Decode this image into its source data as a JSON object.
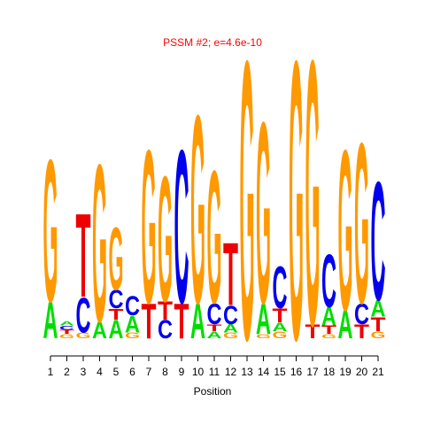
{
  "chart_data": {
    "type": "sequence-logo",
    "title": "PSSM #2; e=4.6e-10",
    "xlabel": "Position",
    "title_color": "#ff0000",
    "colors": {
      "A": "#00dd00",
      "C": "#0000ee",
      "G": "#ff9900",
      "T": "#ee0000"
    },
    "categories": [
      1,
      2,
      3,
      4,
      5,
      6,
      7,
      8,
      9,
      10,
      11,
      12,
      13,
      14,
      15,
      16,
      17,
      18,
      19,
      20,
      21
    ],
    "columns": [
      [
        {
          "letter": "A",
          "height": 0.26
        },
        {
          "letter": "G",
          "height": 1.02
        }
      ],
      [
        {
          "letter": "G",
          "height": 0.03
        },
        {
          "letter": "T",
          "height": 0.03
        },
        {
          "letter": "C",
          "height": 0.03
        },
        {
          "letter": "A",
          "height": 0.03
        }
      ],
      [
        {
          "letter": "G",
          "height": 0.04
        },
        {
          "letter": "C",
          "height": 0.25
        },
        {
          "letter": "T",
          "height": 0.6
        }
      ],
      [
        {
          "letter": "A",
          "height": 0.12
        },
        {
          "letter": "G",
          "height": 1.13
        }
      ],
      [
        {
          "letter": "A",
          "height": 0.13
        },
        {
          "letter": "T",
          "height": 0.08
        },
        {
          "letter": "C",
          "height": 0.13
        },
        {
          "letter": "G",
          "height": 0.45
        }
      ],
      [
        {
          "letter": "G",
          "height": 0.04
        },
        {
          "letter": "A",
          "height": 0.12
        },
        {
          "letter": "C",
          "height": 0.14
        }
      ],
      [
        {
          "letter": "T",
          "height": 0.25
        },
        {
          "letter": "G",
          "height": 1.1
        }
      ],
      [
        {
          "letter": "C",
          "height": 0.13
        },
        {
          "letter": "T",
          "height": 0.13
        },
        {
          "letter": "G",
          "height": 0.9
        }
      ],
      [
        {
          "letter": "T",
          "height": 0.25
        },
        {
          "letter": "C",
          "height": 1.1
        }
      ],
      [
        {
          "letter": "A",
          "height": 0.25
        },
        {
          "letter": "G",
          "height": 1.35
        }
      ],
      [
        {
          "letter": "A",
          "height": 0.05
        },
        {
          "letter": "T",
          "height": 0.05
        },
        {
          "letter": "C",
          "height": 0.15
        },
        {
          "letter": "G",
          "height": 0.95
        }
      ],
      [
        {
          "letter": "G",
          "height": 0.04
        },
        {
          "letter": "A",
          "height": 0.06
        },
        {
          "letter": "C",
          "height": 0.13
        },
        {
          "letter": "T",
          "height": 0.45
        }
      ],
      [
        {
          "letter": "G",
          "height": 2.0
        }
      ],
      [
        {
          "letter": "G",
          "height": 0.03
        },
        {
          "letter": "A",
          "height": 0.22
        },
        {
          "letter": "G",
          "height": 1.3
        }
      ],
      [
        {
          "letter": "G",
          "height": 0.05
        },
        {
          "letter": "A",
          "height": 0.06
        },
        {
          "letter": "T",
          "height": 0.1
        },
        {
          "letter": "C",
          "height": 0.3
        }
      ],
      [
        {
          "letter": "G",
          "height": 2.0
        }
      ],
      [
        {
          "letter": "T",
          "height": 0.1
        },
        {
          "letter": "G",
          "height": 1.9
        }
      ],
      [
        {
          "letter": "G",
          "height": 0.03
        },
        {
          "letter": "T",
          "height": 0.06
        },
        {
          "letter": "A",
          "height": 0.13
        },
        {
          "letter": "C",
          "height": 0.38
        }
      ],
      [
        {
          "letter": "A",
          "height": 0.2
        },
        {
          "letter": "G",
          "height": 1.15
        }
      ],
      [
        {
          "letter": "T",
          "height": 0.1
        },
        {
          "letter": "C",
          "height": 0.15
        },
        {
          "letter": "G",
          "height": 1.15
        }
      ],
      [
        {
          "letter": "G",
          "height": 0.05
        },
        {
          "letter": "T",
          "height": 0.1
        },
        {
          "letter": "A",
          "height": 0.12
        },
        {
          "letter": "C",
          "height": 0.85
        }
      ]
    ]
  }
}
